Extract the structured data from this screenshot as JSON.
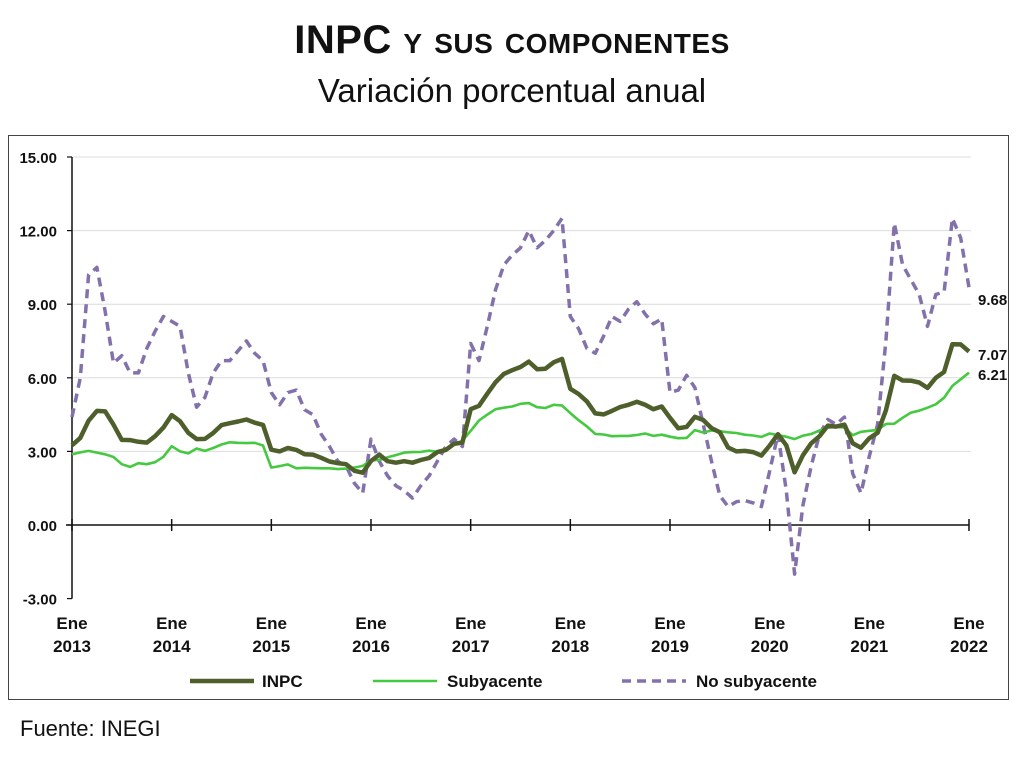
{
  "header": {
    "title": "INPC y sus componentes",
    "subtitle": "Variación porcentual anual"
  },
  "footer": {
    "source": "Fuente: INEGI"
  },
  "chart_data": {
    "type": "line",
    "title": "INPC y sus componentes",
    "subtitle": "Variación porcentual anual",
    "xlabel": "",
    "ylabel": "",
    "frequency": "monthly",
    "x_start": "2013-01",
    "x_end": "2022-01",
    "x_ticks": [
      {
        "month": "Ene",
        "year": "2013"
      },
      {
        "month": "Ene",
        "year": "2014"
      },
      {
        "month": "Ene",
        "year": "2015"
      },
      {
        "month": "Ene",
        "year": "2016"
      },
      {
        "month": "Ene",
        "year": "2017"
      },
      {
        "month": "Ene",
        "year": "2018"
      },
      {
        "month": "Ene",
        "year": "2019"
      },
      {
        "month": "Ene",
        "year": "2020"
      },
      {
        "month": "Ene",
        "year": "2021"
      },
      {
        "month": "Ene",
        "year": "2022"
      }
    ],
    "y_ticks": [
      "15.00",
      "12.00",
      "9.00",
      "6.00",
      "3.00",
      "0.00",
      "-3.00"
    ],
    "ylim": [
      -3,
      15
    ],
    "grid": true,
    "legend_position": "bottom",
    "series": [
      {
        "name": "INPC",
        "color": "#4e5f2b",
        "style": "solid-thick",
        "end_label": "7.07",
        "values": [
          3.25,
          3.55,
          4.25,
          4.65,
          4.63,
          4.09,
          3.47,
          3.46,
          3.39,
          3.36,
          3.62,
          3.97,
          4.48,
          4.23,
          3.76,
          3.5,
          3.51,
          3.75,
          4.07,
          4.15,
          4.22,
          4.3,
          4.17,
          4.08,
          3.07,
          3.0,
          3.14,
          3.06,
          2.88,
          2.87,
          2.74,
          2.59,
          2.52,
          2.48,
          2.21,
          2.13,
          2.61,
          2.87,
          2.6,
          2.54,
          2.6,
          2.54,
          2.65,
          2.73,
          2.97,
          3.06,
          3.31,
          3.36,
          4.72,
          4.86,
          5.35,
          5.82,
          6.16,
          6.31,
          6.44,
          6.66,
          6.35,
          6.37,
          6.63,
          6.77,
          5.55,
          5.34,
          5.04,
          4.55,
          4.51,
          4.65,
          4.81,
          4.9,
          5.02,
          4.9,
          4.72,
          4.83,
          4.37,
          3.94,
          4.0,
          4.41,
          4.28,
          3.95,
          3.78,
          3.16,
          3.0,
          3.02,
          2.97,
          2.83,
          3.24,
          3.7,
          3.25,
          2.15,
          2.84,
          3.33,
          3.62,
          4.05,
          4.01,
          4.09,
          3.33,
          3.15,
          3.54,
          3.76,
          4.67,
          6.08,
          5.89,
          5.88,
          5.81,
          5.59,
          6.0,
          6.24,
          7.37,
          7.36,
          7.07
        ]
      },
      {
        "name": "Subyacente",
        "color": "#45c940",
        "style": "solid",
        "end_label": "6.21",
        "values": [
          2.88,
          2.96,
          3.02,
          2.95,
          2.88,
          2.77,
          2.48,
          2.37,
          2.52,
          2.48,
          2.56,
          2.78,
          3.21,
          3.0,
          2.92,
          3.12,
          3.02,
          3.14,
          3.28,
          3.37,
          3.35,
          3.34,
          3.35,
          3.24,
          2.34,
          2.4,
          2.47,
          2.31,
          2.33,
          2.32,
          2.31,
          2.31,
          2.28,
          2.3,
          2.34,
          2.41,
          2.64,
          2.65,
          2.76,
          2.85,
          2.95,
          2.97,
          2.98,
          3.03,
          2.98,
          3.1,
          3.29,
          3.44,
          3.84,
          4.26,
          4.5,
          4.72,
          4.78,
          4.83,
          4.94,
          4.97,
          4.8,
          4.77,
          4.9,
          4.87,
          4.56,
          4.27,
          4.02,
          3.71,
          3.69,
          3.62,
          3.63,
          3.63,
          3.67,
          3.73,
          3.63,
          3.68,
          3.6,
          3.54,
          3.55,
          3.87,
          3.77,
          3.85,
          3.82,
          3.78,
          3.75,
          3.68,
          3.65,
          3.59,
          3.73,
          3.66,
          3.6,
          3.5,
          3.64,
          3.71,
          3.85,
          3.97,
          3.99,
          3.98,
          3.66,
          3.8,
          3.84,
          3.87,
          4.12,
          4.13,
          4.37,
          4.58,
          4.66,
          4.78,
          4.92,
          5.19,
          5.67,
          5.94,
          6.21
        ]
      },
      {
        "name": "No subyacente",
        "color": "#8371ab",
        "style": "dashed",
        "end_label": "9.68",
        "values": [
          4.4,
          6.0,
          10.2,
          10.5,
          8.7,
          6.6,
          6.9,
          6.2,
          6.2,
          7.2,
          7.9,
          8.5,
          8.3,
          8.1,
          6.2,
          4.8,
          5.2,
          6.2,
          6.7,
          6.7,
          7.1,
          7.5,
          7.0,
          6.7,
          5.4,
          4.9,
          5.4,
          5.5,
          4.7,
          4.5,
          3.7,
          3.2,
          2.6,
          2.4,
          1.7,
          1.3,
          3.5,
          2.6,
          2.0,
          1.6,
          1.4,
          1.1,
          1.6,
          2.0,
          2.6,
          3.2,
          3.5,
          3.2,
          7.4,
          6.7,
          8.1,
          9.6,
          10.6,
          11.0,
          11.3,
          12.0,
          11.3,
          11.6,
          12.0,
          12.5,
          8.5,
          8.0,
          7.2,
          7.0,
          7.7,
          8.5,
          8.3,
          8.8,
          9.1,
          8.6,
          8.2,
          8.4,
          5.4,
          5.5,
          6.1,
          5.6,
          4.1,
          2.6,
          1.2,
          0.75,
          0.95,
          1.0,
          0.9,
          0.75,
          2.2,
          3.7,
          1.4,
          -2.0,
          0.8,
          2.4,
          3.7,
          4.3,
          4.1,
          4.4,
          2.1,
          1.3,
          2.8,
          4.1,
          7.5,
          12.3,
          10.6,
          10.0,
          9.4,
          8.1,
          9.4,
          9.5,
          12.5,
          11.7,
          9.68
        ]
      }
    ]
  }
}
